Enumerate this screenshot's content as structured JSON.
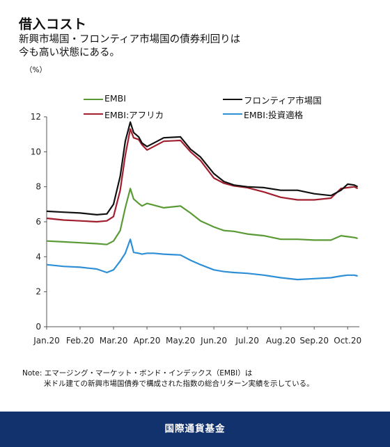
{
  "header": {
    "title": "借入コスト",
    "subtitle": "新興市場国・フロンティア市場国の債券利回りは今も高い状態にある。",
    "unit": "（%）"
  },
  "note": {
    "line1": "Note: エマージング・マーケット・ボンド・インデックス（EMBI）は",
    "line2": "米ドル建ての新興市場国債券で構成された指数の総合リターン実績を示している。"
  },
  "footer": {
    "label": "国際通貨基金"
  },
  "chart_data": {
    "type": "line",
    "title": "借入コスト",
    "ylabel": "（%）",
    "ylim": [
      0,
      12
    ],
    "yticks": [
      0,
      2,
      4,
      6,
      8,
      10,
      12
    ],
    "x_tick_labels": [
      "Jan.20",
      "Feb.20",
      "Mar.20",
      "Apr.20",
      "May.20",
      "Jun.20",
      "Jul.20",
      "Aug.20",
      "Sep.20",
      "Oct.20"
    ],
    "xlim": [
      0,
      9.35
    ],
    "grid": false,
    "legend_position": "top",
    "x": [
      0,
      0.5,
      1.0,
      1.5,
      1.8,
      2.0,
      2.2,
      2.35,
      2.5,
      2.6,
      2.75,
      2.85,
      3.0,
      3.2,
      3.5,
      4.0,
      4.3,
      4.6,
      5.0,
      5.3,
      5.6,
      6.0,
      6.5,
      7.0,
      7.5,
      8.0,
      8.5,
      8.8,
      9.0,
      9.2,
      9.3
    ],
    "series": [
      {
        "name": "EMBI",
        "color": "#5a9a35",
        "values": [
          4.9,
          4.85,
          4.8,
          4.75,
          4.7,
          4.9,
          5.5,
          6.8,
          7.9,
          7.3,
          7.05,
          6.9,
          7.05,
          6.95,
          6.8,
          6.9,
          6.5,
          6.05,
          5.7,
          5.5,
          5.45,
          5.3,
          5.2,
          5.0,
          5.0,
          4.95,
          4.95,
          5.2,
          5.15,
          5.1,
          5.05
        ]
      },
      {
        "name": "EMBI:アフリカ",
        "color": "#a01e2d",
        "values": [
          6.2,
          6.1,
          6.05,
          6.0,
          6.05,
          6.3,
          7.8,
          9.8,
          11.3,
          10.8,
          10.7,
          10.4,
          10.1,
          10.3,
          10.6,
          10.65,
          10.0,
          9.5,
          8.5,
          8.2,
          8.05,
          7.95,
          7.7,
          7.4,
          7.25,
          7.25,
          7.35,
          7.9,
          7.95,
          8.0,
          7.9
        ]
      },
      {
        "name": "フロンティア市場国",
        "color": "#111111",
        "values": [
          6.6,
          6.55,
          6.5,
          6.4,
          6.45,
          7.0,
          8.6,
          10.6,
          11.7,
          11.1,
          10.85,
          10.5,
          10.3,
          10.5,
          10.8,
          10.85,
          10.15,
          9.7,
          8.75,
          8.3,
          8.1,
          8.0,
          7.95,
          7.8,
          7.8,
          7.6,
          7.5,
          7.8,
          8.15,
          8.1,
          8.0
        ]
      },
      {
        "name": "EMBI:投資適格",
        "color": "#2e8fd6",
        "values": [
          3.55,
          3.45,
          3.4,
          3.3,
          3.1,
          3.25,
          3.75,
          4.2,
          5.0,
          4.25,
          4.2,
          4.15,
          4.2,
          4.2,
          4.15,
          4.1,
          3.8,
          3.55,
          3.25,
          3.15,
          3.1,
          3.05,
          2.95,
          2.8,
          2.7,
          2.75,
          2.8,
          2.9,
          2.95,
          2.95,
          2.9
        ]
      }
    ]
  }
}
